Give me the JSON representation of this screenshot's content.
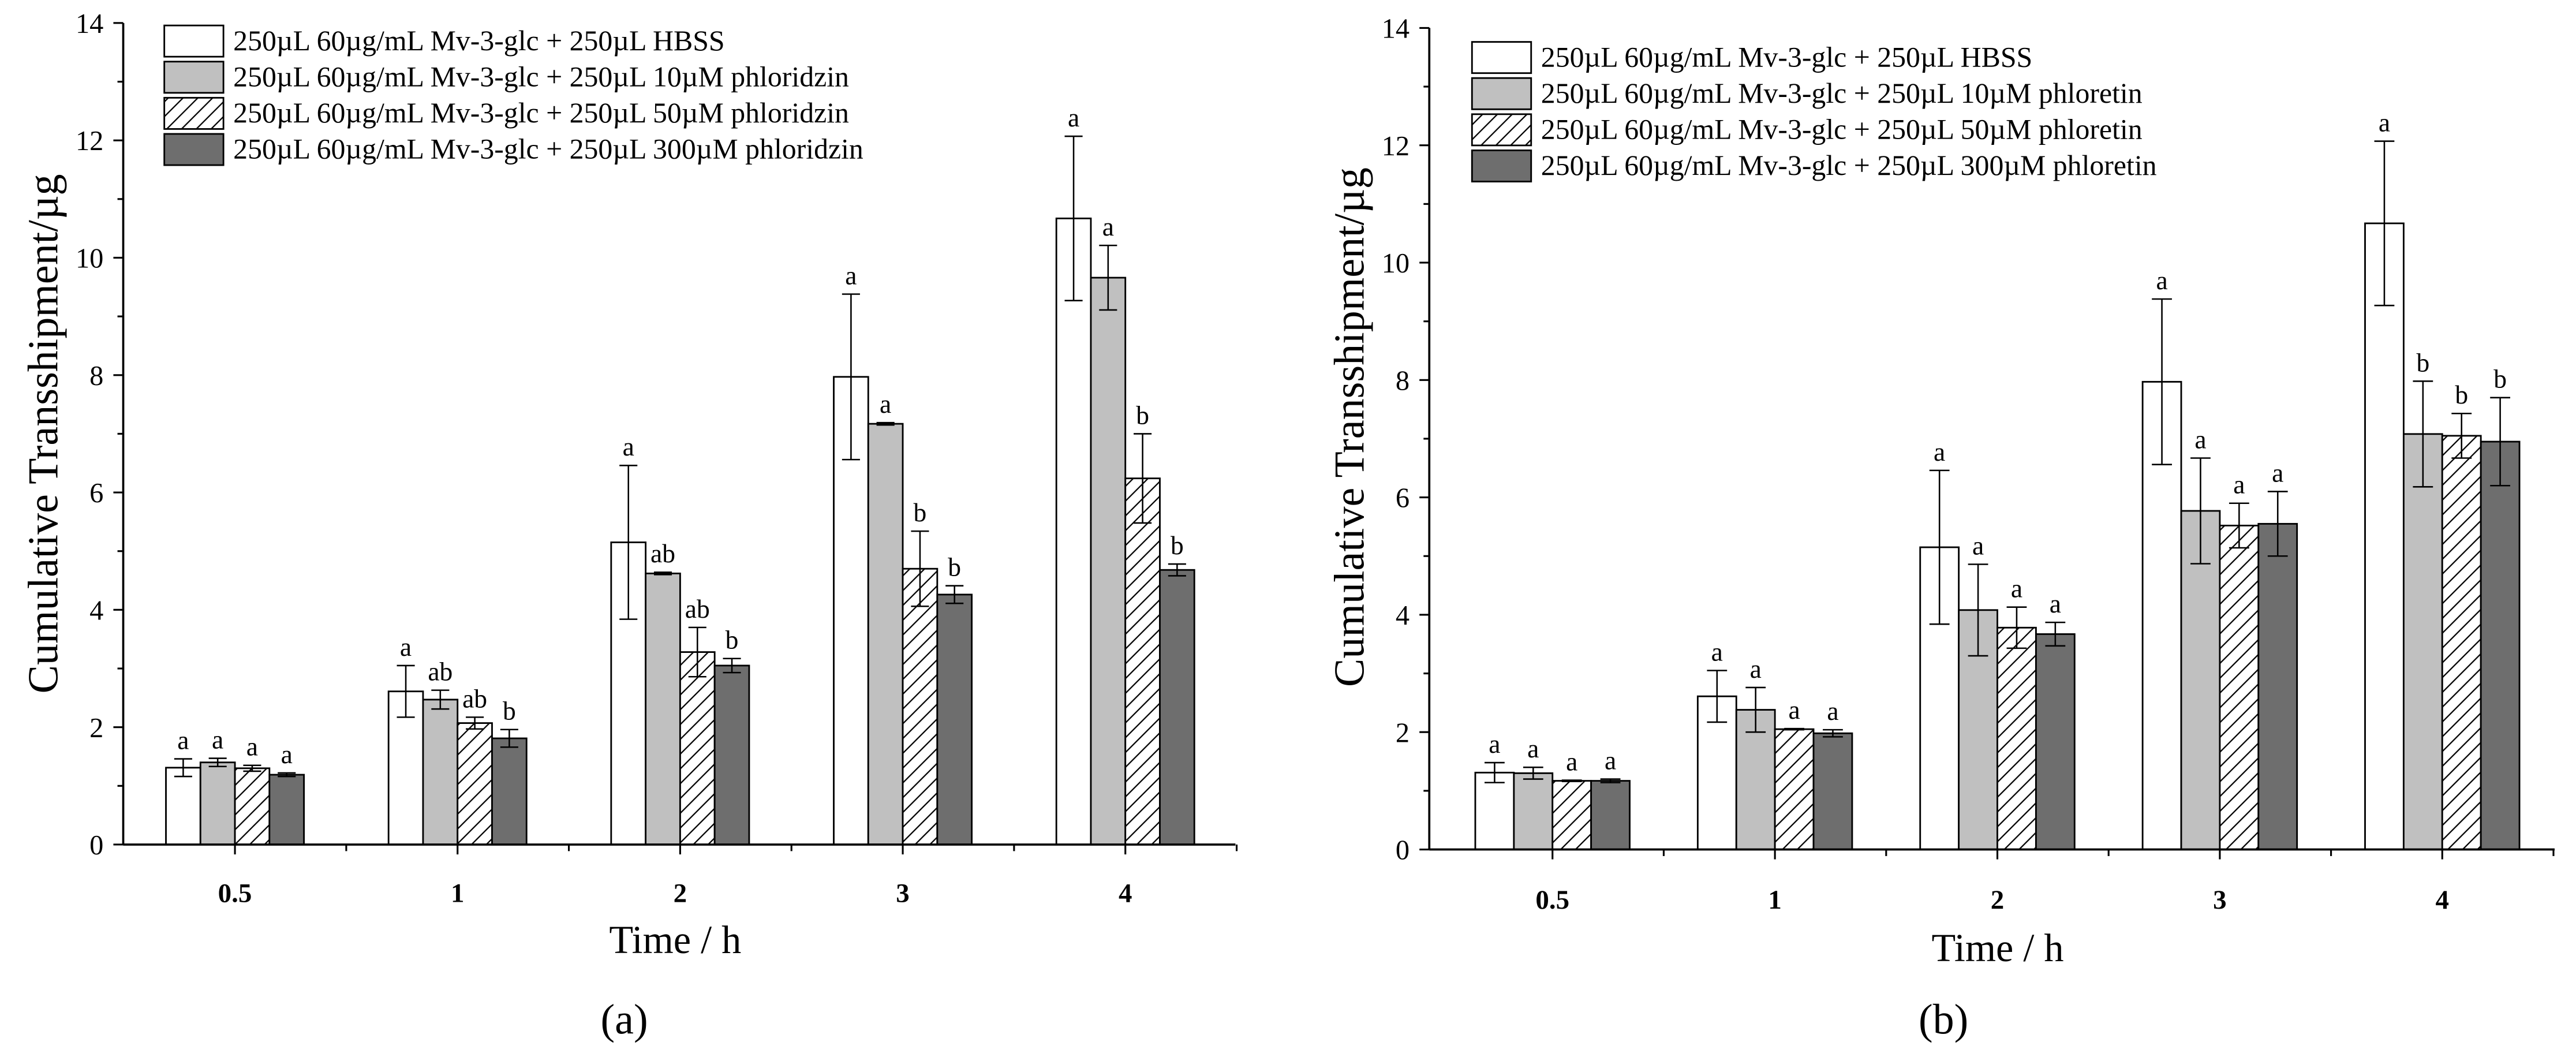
{
  "chart_data": [
    {
      "type": "bar",
      "caption": "(a)",
      "xlabel": "Time / h",
      "ylabel": "Cumulative Transshipment/µg",
      "ylim": [
        0,
        14
      ],
      "yticks": [
        0,
        2,
        4,
        6,
        8,
        10,
        12,
        14
      ],
      "grid": false,
      "categories": [
        "0.5",
        "1",
        "2",
        "3",
        "4"
      ],
      "series": [
        {
          "name": "250µL 60µg/mL Mv-3-glc + 250µL HBSS",
          "fill": "#ffffff",
          "hatched": false,
          "values": [
            1.31,
            2.61,
            5.15,
            7.97,
            10.67
          ],
          "errors": [
            0.15,
            0.44,
            1.31,
            1.41,
            1.4
          ],
          "letters": [
            "a",
            "a",
            "a",
            "a",
            "a"
          ]
        },
        {
          "name": "250µL 60µg/mL Mv-3-glc + 250µL 10µM phloridzin",
          "fill": "#c0c0c0",
          "hatched": false,
          "values": [
            1.4,
            2.47,
            4.62,
            7.17,
            9.66
          ],
          "errors": [
            0.07,
            0.16,
            0.02,
            0.02,
            0.55
          ],
          "letters": [
            "a",
            "ab",
            "ab",
            "a",
            "a"
          ]
        },
        {
          "name": "250µL 60µg/mL Mv-3-glc + 250µL 50µM phloridzin",
          "fill": "#ffffff",
          "hatched": true,
          "values": [
            1.3,
            2.07,
            3.28,
            4.7,
            6.24
          ],
          "errors": [
            0.05,
            0.1,
            0.42,
            0.64,
            0.76
          ],
          "letters": [
            "a",
            "ab",
            "ab",
            "b",
            "b"
          ]
        },
        {
          "name": "250µL 60µg/mL Mv-3-glc + 250µL 300µM phloridzin",
          "fill": "#6e6e6e",
          "hatched": false,
          "values": [
            1.19,
            1.81,
            3.05,
            4.26,
            4.68
          ],
          "errors": [
            0.03,
            0.15,
            0.12,
            0.15,
            0.1
          ],
          "letters": [
            "a",
            "b",
            "b",
            "b",
            "b"
          ]
        }
      ]
    },
    {
      "type": "bar",
      "caption": "(b)",
      "xlabel": "Time / h",
      "ylabel": "Cumulative Transshipment/µg",
      "ylim": [
        0,
        14
      ],
      "yticks": [
        0,
        2,
        4,
        6,
        8,
        10,
        12,
        14
      ],
      "grid": false,
      "categories": [
        "0.5",
        "1",
        "2",
        "3",
        "4"
      ],
      "series": [
        {
          "name": "250µL 60µg/mL Mv-3-glc + 250µL HBSS",
          "fill": "#ffffff",
          "hatched": false,
          "values": [
            1.31,
            2.61,
            5.15,
            7.97,
            10.67
          ],
          "errors": [
            0.17,
            0.44,
            1.31,
            1.41,
            1.4
          ],
          "letters": [
            "a",
            "a",
            "a",
            "a",
            "a"
          ]
        },
        {
          "name": "250µL 60µg/mL Mv-3-glc + 250µL 10µM phloretin",
          "fill": "#c0c0c0",
          "hatched": false,
          "values": [
            1.3,
            2.38,
            4.08,
            5.77,
            7.08
          ],
          "errors": [
            0.1,
            0.38,
            0.78,
            0.9,
            0.9
          ],
          "letters": [
            "a",
            "a",
            "a",
            "a",
            "b"
          ]
        },
        {
          "name": "250µL 60µg/mL Mv-3-glc + 250µL 50µM phloretin",
          "fill": "#ffffff",
          "hatched": true,
          "values": [
            1.17,
            2.05,
            3.78,
            5.52,
            7.05
          ],
          "errors": [
            0.01,
            0.01,
            0.35,
            0.38,
            0.38
          ],
          "letters": [
            "a",
            "a",
            "a",
            "a",
            "b"
          ]
        },
        {
          "name": "250µL 60µg/mL Mv-3-glc + 250µL 300µM phloretin",
          "fill": "#6e6e6e",
          "hatched": false,
          "values": [
            1.17,
            1.98,
            3.67,
            5.55,
            6.95
          ],
          "errors": [
            0.03,
            0.06,
            0.2,
            0.55,
            0.75
          ],
          "letters": [
            "a",
            "a",
            "a",
            "a",
            "b"
          ]
        }
      ]
    }
  ]
}
